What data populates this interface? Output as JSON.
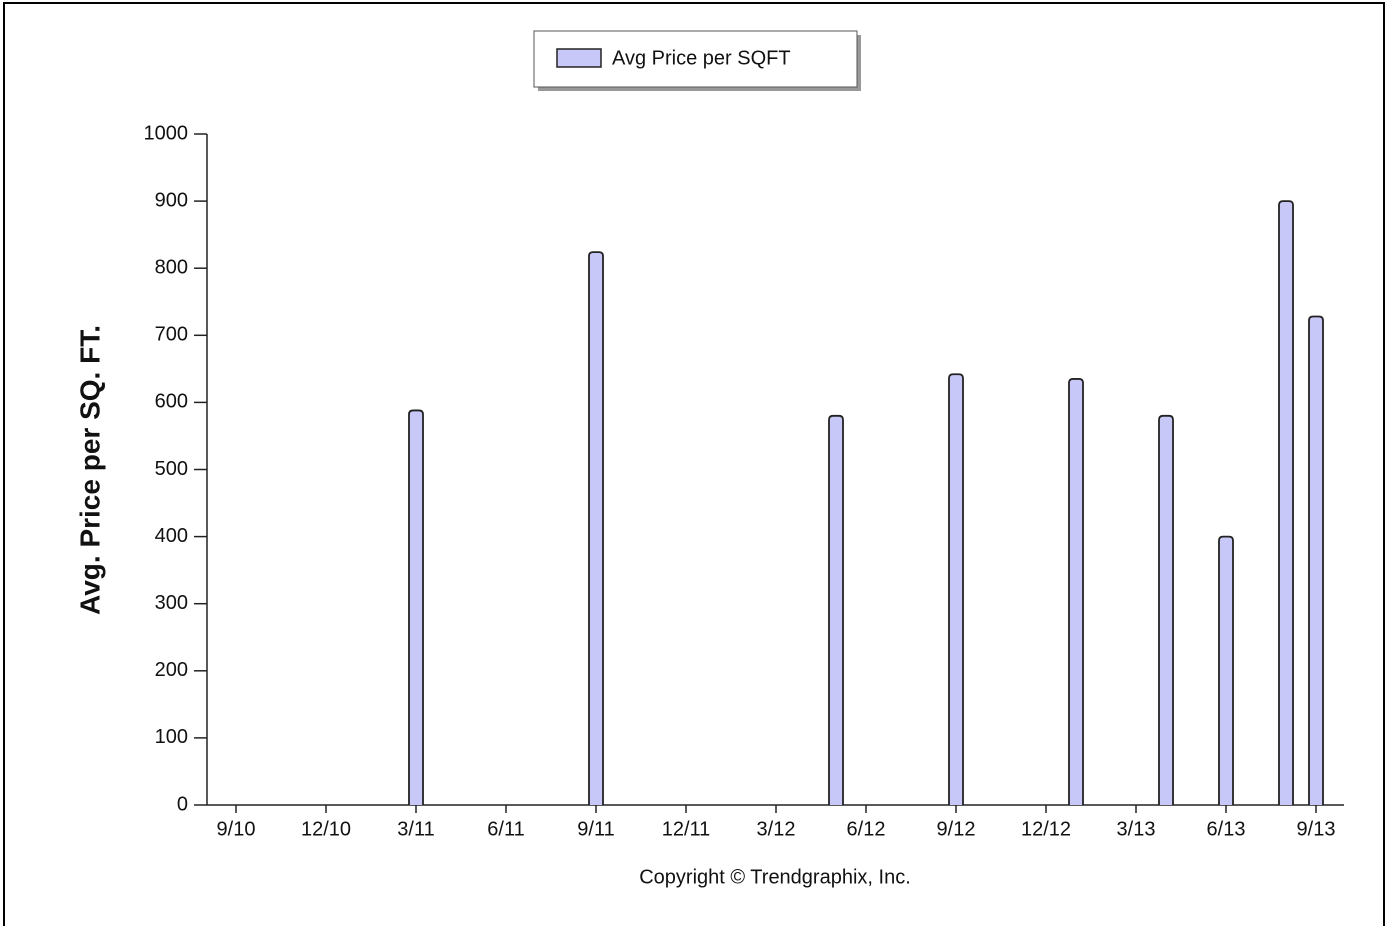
{
  "chart_data": {
    "type": "bar",
    "y_label": "Avg. Price per SQ. FT.",
    "footnote": "Copyright © Trendgraphix, Inc.",
    "categories": [
      "9/10",
      null,
      null,
      "12/10",
      null,
      null,
      "3/11",
      null,
      null,
      "6/11",
      null,
      null,
      "9/11",
      null,
      null,
      "12/11",
      null,
      null,
      "3/12",
      null,
      null,
      "6/12",
      null,
      null,
      "9/12",
      null,
      null,
      "12/12",
      null,
      null,
      "3/13",
      null,
      null,
      "6/13",
      null,
      null,
      "9/13"
    ],
    "series": [
      {
        "name": "Avg Price per SQFT",
        "color": "#c8c8f8",
        "values": [
          null,
          null,
          null,
          null,
          null,
          null,
          588,
          null,
          null,
          null,
          null,
          null,
          824,
          null,
          null,
          null,
          null,
          null,
          null,
          null,
          580,
          null,
          null,
          null,
          642,
          null,
          null,
          null,
          635,
          null,
          null,
          580,
          null,
          400,
          null,
          900,
          728
        ]
      }
    ],
    "ylim": [
      0,
      1000
    ],
    "yticks": [
      0,
      100,
      200,
      300,
      400,
      500,
      600,
      700,
      800,
      900,
      1000
    ],
    "grid": false,
    "legend": "top"
  }
}
